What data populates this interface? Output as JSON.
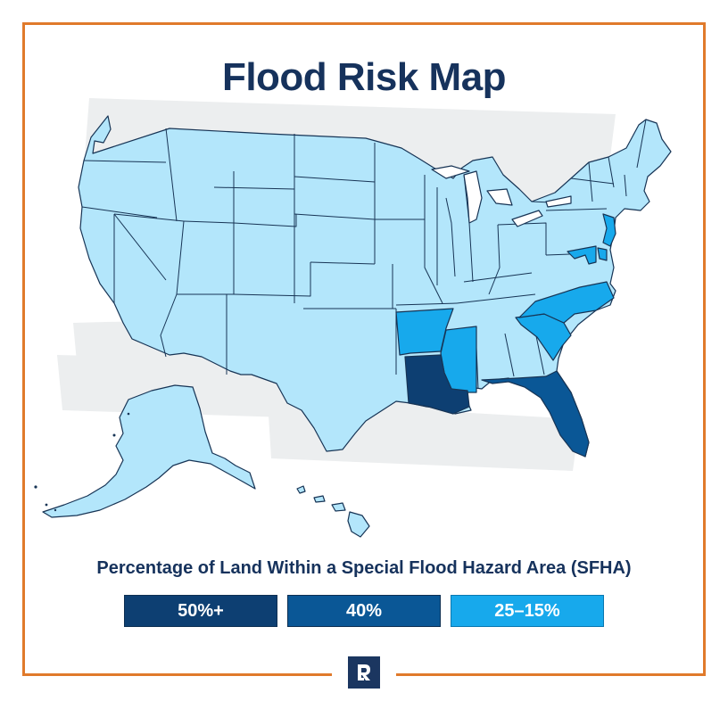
{
  "title": "Flood Risk Map",
  "legend": {
    "title": "Percentage of Land Within a Special Flood Hazard Area (SFHA)",
    "items": [
      {
        "label": "50%+",
        "color": "#0d3f72"
      },
      {
        "label": "40%",
        "color": "#0a5796"
      },
      {
        "label": "25–15%",
        "color": "#17a9ec"
      }
    ]
  },
  "map": {
    "base_color": "#b3e6fb",
    "border_color": "#173455",
    "highlighted_states": [
      {
        "state": "Louisiana",
        "tier": "50%+",
        "color": "#0d3f72"
      },
      {
        "state": "Florida",
        "tier": "40%",
        "color": "#0a5796"
      },
      {
        "state": "Arkansas",
        "tier": "25–15%",
        "color": "#17a9ec"
      },
      {
        "state": "Mississippi",
        "tier": "25–15%",
        "color": "#17a9ec"
      },
      {
        "state": "South Carolina",
        "tier": "25–15%",
        "color": "#17a9ec"
      },
      {
        "state": "North Carolina",
        "tier": "25–15%",
        "color": "#17a9ec"
      },
      {
        "state": "New Jersey",
        "tier": "25–15%",
        "color": "#17a9ec"
      },
      {
        "state": "Delaware",
        "tier": "25–15%",
        "color": "#17a9ec"
      },
      {
        "state": "Maryland",
        "tier": "25–15%",
        "color": "#17a9ec"
      }
    ]
  },
  "logo": {
    "letter": "R",
    "color": "#1b3660"
  },
  "frame_color": "#e07a2b"
}
